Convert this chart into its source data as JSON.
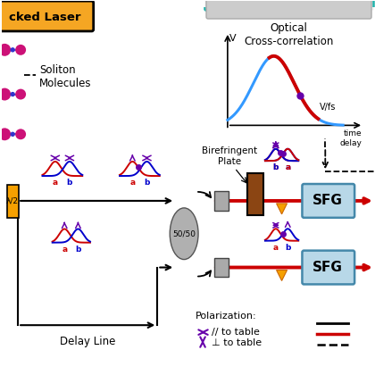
{
  "bg_color": "#ffffff",
  "laser_box_color": "#f5a623",
  "laser_text": "cked Laser",
  "soliton_text": "Soliton\nMolecules",
  "delay_line_text": "Delay Line",
  "sfg_box_color": "#b8d8e8",
  "sfg_text": "SFG",
  "birefringent_text": "Birefringent\nPlate",
  "splitter_text": "50/50",
  "lambda_half_text": "λ/2",
  "optical_corr_title": "Optical\nCross-correlation",
  "v_label": "V",
  "vfs_label": "V/fs",
  "time_delay_label": "time\ndelay",
  "polarization_text": "Polarization:",
  "pol_parallel": "// to table",
  "pol_perp": "⊥ to table",
  "teal_dash_color": "#20b2aa",
  "purple_color": "#6600aa",
  "red_color": "#cc0000",
  "blue_color": "#0000cc",
  "orange_color": "#f5a000",
  "magenta_color": "#cc1177",
  "brown_color": "#8B4513",
  "gray_color": "#999999"
}
